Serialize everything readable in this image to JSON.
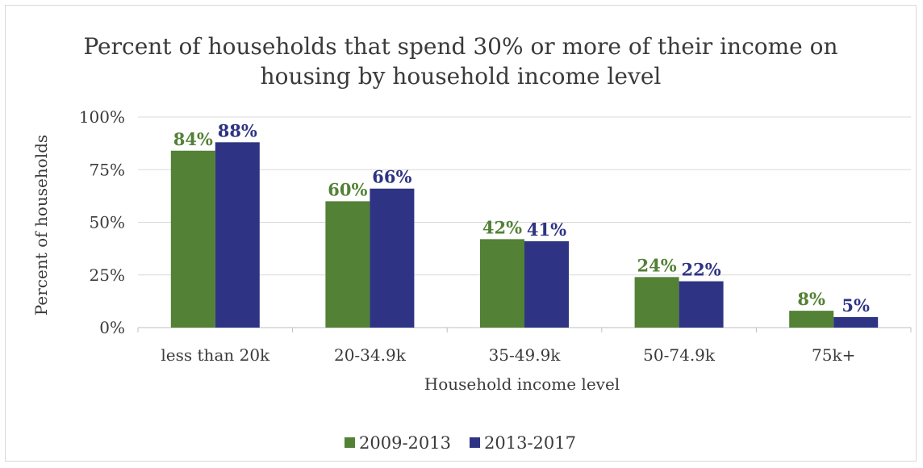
{
  "colors": {
    "series_2009_2013": "#538135",
    "series_2013_2017": "#2e3483"
  },
  "chart_data": {
    "type": "bar",
    "title": "Percent of households that spend 30% or more of their income on housing by household income level",
    "title_lines": [
      "Percent of households that spend 30% or more of their income on",
      "housing by household income level"
    ],
    "xlabel": "Household income level",
    "ylabel": "Percent of households",
    "categories": [
      "less than 20k",
      "20-34.9k",
      "35-49.9k",
      "50-74.9k",
      "75k+"
    ],
    "series": [
      {
        "name": "2009-2013",
        "values": [
          84,
          60,
          42,
          24,
          8
        ],
        "labels": [
          "84%",
          "60%",
          "42%",
          "24%",
          "8%"
        ]
      },
      {
        "name": "2013-2017",
        "values": [
          88,
          66,
          41,
          22,
          5
        ],
        "labels": [
          "88%",
          "66%",
          "41%",
          "22%",
          "5%"
        ]
      }
    ],
    "ylim": [
      0,
      100
    ],
    "yticks": [
      0,
      25,
      50,
      75,
      100
    ],
    "ytick_labels": [
      "0%",
      "25%",
      "50%",
      "75%",
      "100%"
    ],
    "grid": true,
    "legend": "bottom"
  }
}
